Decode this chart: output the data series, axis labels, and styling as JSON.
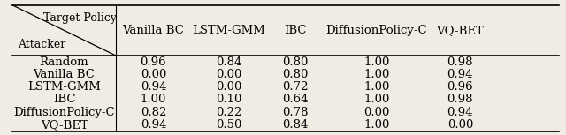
{
  "columns": [
    "Vanilla BC",
    "LSTM-GMM",
    "IBC",
    "DiffusionPolicy-C",
    "VQ-BET"
  ],
  "rows": [
    "Random",
    "Vanilla BC",
    "LSTM-GMM",
    "IBC",
    "DiffusionPolicy-C",
    "VQ-BET"
  ],
  "values": [
    [
      0.96,
      0.84,
      0.8,
      1.0,
      0.98
    ],
    [
      0.0,
      0.0,
      0.8,
      1.0,
      0.94
    ],
    [
      0.94,
      0.0,
      0.72,
      1.0,
      0.96
    ],
    [
      1.0,
      0.1,
      0.64,
      1.0,
      0.98
    ],
    [
      0.82,
      0.22,
      0.78,
      0.0,
      0.94
    ],
    [
      0.94,
      0.5,
      0.84,
      1.0,
      0.0
    ]
  ],
  "header_top_left_line1": "Target Policy",
  "header_top_left_line2": "Attacker",
  "background_color": "#f0ece4",
  "text_color": "#000000",
  "font_size": 9.5,
  "fig_width": 6.4,
  "fig_height": 1.53
}
